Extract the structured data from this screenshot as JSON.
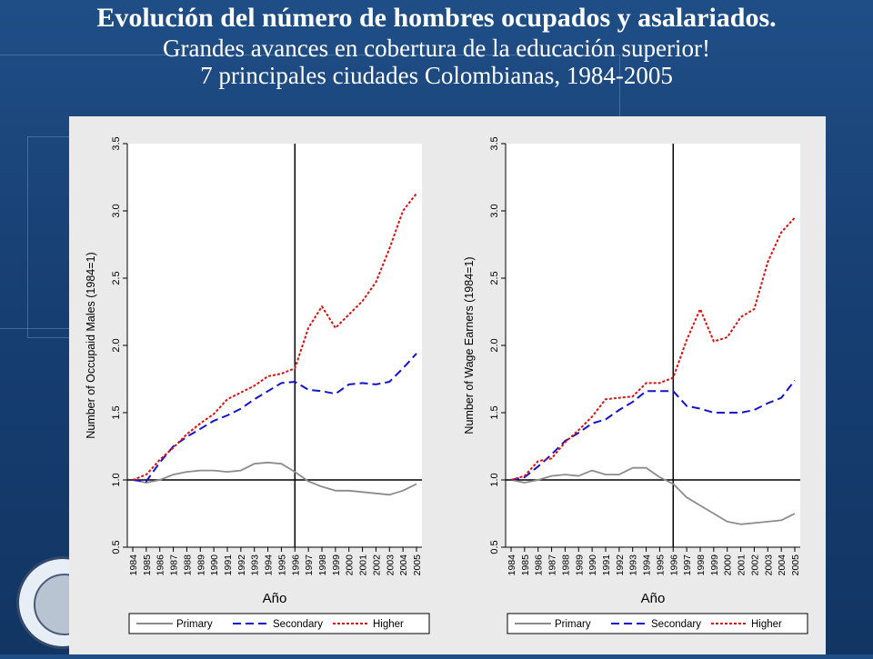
{
  "slide": {
    "title_line1": "Evolución del número de hombres ocupados y asalariados.",
    "title_line2": "Grandes avances en cobertura de la educación superior!",
    "title_line3": "7 principales ciudades Colombianas, 1984-2005",
    "colors": {
      "background": "#1a4478",
      "panel": "#eaeaea",
      "primary": "#8c8c8c",
      "secondary": "#1414c8",
      "higher": "#d21414"
    }
  },
  "chart_data": [
    {
      "type": "line",
      "xlabel": "Año",
      "ylabel": "Number of Occupaid Males (1984=1)",
      "ylim": [
        0.5,
        3.5
      ],
      "yticks": [
        "0.5",
        "1.0",
        "1.5",
        "2.0",
        "2.5",
        "3.0",
        "3.5"
      ],
      "ytick_values": [
        0.5,
        1.0,
        1.5,
        2.0,
        2.5,
        3.0,
        3.5
      ],
      "x": [
        "1984",
        "1985",
        "1986",
        "1987",
        "1988",
        "1989",
        "1990",
        "1991",
        "1992",
        "1993",
        "1994",
        "1995",
        "1996",
        "1997",
        "1998",
        "1999",
        "2000",
        "2001",
        "2002",
        "2003",
        "2004",
        "2005"
      ],
      "reference_lines": {
        "x": "1996",
        "y": 1.0
      },
      "legend_position": "bottom",
      "series": [
        {
          "name": "Primary",
          "style": "solid",
          "color": "#8c8c8c",
          "values": [
            1.0,
            0.98,
            1.0,
            1.04,
            1.06,
            1.07,
            1.07,
            1.06,
            1.07,
            1.12,
            1.13,
            1.12,
            1.06,
            0.99,
            0.95,
            0.92,
            0.92,
            0.91,
            0.9,
            0.89,
            0.92,
            0.97
          ]
        },
        {
          "name": "Secondary",
          "style": "dashed",
          "color": "#1414c8",
          "values": [
            1.0,
            0.99,
            1.13,
            1.25,
            1.32,
            1.38,
            1.44,
            1.48,
            1.53,
            1.6,
            1.66,
            1.72,
            1.73,
            1.67,
            1.66,
            1.64,
            1.71,
            1.72,
            1.71,
            1.73,
            1.83,
            1.94
          ]
        },
        {
          "name": "Higher",
          "style": "dotted",
          "color": "#d21414",
          "values": [
            1.0,
            1.04,
            1.15,
            1.24,
            1.34,
            1.42,
            1.49,
            1.6,
            1.65,
            1.7,
            1.77,
            1.79,
            1.83,
            2.13,
            2.29,
            2.13,
            2.23,
            2.33,
            2.47,
            2.72,
            3.0,
            3.13
          ]
        }
      ]
    },
    {
      "type": "line",
      "xlabel": "Año",
      "ylabel": "Number of Wage Earners (1984=1)",
      "ylim": [
        0.5,
        3.5
      ],
      "yticks": [
        "0.5",
        "1.0",
        "1.5",
        "2.0",
        "2.5",
        "3.0",
        "3.5"
      ],
      "ytick_values": [
        0.5,
        1.0,
        1.5,
        2.0,
        2.5,
        3.0,
        3.5
      ],
      "x": [
        "1984",
        "1985",
        "1986",
        "1987",
        "1988",
        "1989",
        "1990",
        "1991",
        "1992",
        "1993",
        "1994",
        "1995",
        "1996",
        "1997",
        "1998",
        "1999",
        "2000",
        "2001",
        "2002",
        "2003",
        "2004",
        "2005"
      ],
      "reference_lines": {
        "x": "1996",
        "y": 1.0
      },
      "legend_position": "bottom",
      "series": [
        {
          "name": "Primary",
          "style": "solid",
          "color": "#8c8c8c",
          "values": [
            1.0,
            0.98,
            1.0,
            1.03,
            1.04,
            1.03,
            1.07,
            1.04,
            1.04,
            1.09,
            1.09,
            1.02,
            0.97,
            0.87,
            0.81,
            0.75,
            0.69,
            0.67,
            0.68,
            0.69,
            0.7,
            0.75
          ]
        },
        {
          "name": "Secondary",
          "style": "dashed",
          "color": "#1414c8",
          "values": [
            1.0,
            1.02,
            1.1,
            1.19,
            1.29,
            1.35,
            1.42,
            1.45,
            1.52,
            1.58,
            1.66,
            1.66,
            1.66,
            1.55,
            1.53,
            1.5,
            1.5,
            1.5,
            1.52,
            1.57,
            1.61,
            1.74
          ]
        },
        {
          "name": "Higher",
          "style": "dotted",
          "color": "#d21414",
          "values": [
            1.0,
            1.03,
            1.14,
            1.16,
            1.28,
            1.37,
            1.47,
            1.6,
            1.61,
            1.62,
            1.72,
            1.72,
            1.76,
            2.04,
            2.27,
            2.03,
            2.06,
            2.21,
            2.27,
            2.62,
            2.84,
            2.95
          ]
        }
      ]
    }
  ]
}
